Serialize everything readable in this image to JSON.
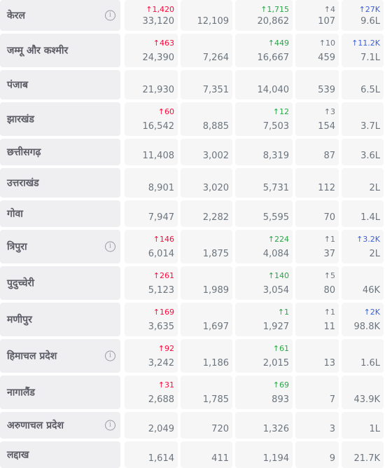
{
  "rows": [
    {
      "state": "केरल",
      "info": true,
      "confirmed": "33,120",
      "confirmed_delta": "↑1,420",
      "active": "12,109",
      "recovered": "20,862",
      "recovered_delta": "↑1,715",
      "deceased": "107",
      "deceased_delta": "↑4",
      "tested": "9.6L",
      "tested_delta": "↑27K"
    },
    {
      "state": "जम्मू और कश्मीर",
      "info": false,
      "confirmed": "24,390",
      "confirmed_delta": "↑463",
      "active": "7,264",
      "recovered": "16,667",
      "recovered_delta": "↑449",
      "deceased": "459",
      "deceased_delta": "↑10",
      "tested": "7.1L",
      "tested_delta": "↑11.2K"
    },
    {
      "state": "पंजाब",
      "info": false,
      "confirmed": "21,930",
      "confirmed_delta": "",
      "active": "7,351",
      "recovered": "14,040",
      "recovered_delta": "",
      "deceased": "539",
      "deceased_delta": "",
      "tested": "6.5L",
      "tested_delta": ""
    },
    {
      "state": "झारखंड",
      "info": false,
      "confirmed": "16,542",
      "confirmed_delta": "↑60",
      "active": "8,885",
      "recovered": "7,503",
      "recovered_delta": "↑12",
      "deceased": "154",
      "deceased_delta": "↑3",
      "tested": "3.7L",
      "tested_delta": ""
    },
    {
      "state": "छत्तीसगढ़",
      "info": false,
      "confirmed": "11,408",
      "confirmed_delta": "",
      "active": "3,002",
      "recovered": "8,319",
      "recovered_delta": "",
      "deceased": "87",
      "deceased_delta": "",
      "tested": "3.6L",
      "tested_delta": ""
    },
    {
      "state": "उत्तराखंड",
      "info": false,
      "confirmed": "8,901",
      "confirmed_delta": "",
      "active": "3,020",
      "recovered": "5,731",
      "recovered_delta": "",
      "deceased": "112",
      "deceased_delta": "",
      "tested": "2L",
      "tested_delta": ""
    },
    {
      "state": "गोवा",
      "info": false,
      "confirmed": "7,947",
      "confirmed_delta": "",
      "active": "2,282",
      "recovered": "5,595",
      "recovered_delta": "",
      "deceased": "70",
      "deceased_delta": "",
      "tested": "1.4L",
      "tested_delta": ""
    },
    {
      "state": "त्रिपुरा",
      "info": true,
      "confirmed": "6,014",
      "confirmed_delta": "↑146",
      "active": "1,875",
      "recovered": "4,084",
      "recovered_delta": "↑224",
      "deceased": "37",
      "deceased_delta": "↑1",
      "tested": "2L",
      "tested_delta": "↑3.2K"
    },
    {
      "state": "पुदुच्चेरी",
      "info": false,
      "confirmed": "5,123",
      "confirmed_delta": "↑261",
      "active": "1,989",
      "recovered": "3,054",
      "recovered_delta": "↑140",
      "deceased": "80",
      "deceased_delta": "↑5",
      "tested": "46K",
      "tested_delta": ""
    },
    {
      "state": "मणीपुर",
      "info": false,
      "confirmed": "3,635",
      "confirmed_delta": "↑169",
      "active": "1,697",
      "recovered": "1,927",
      "recovered_delta": "↑1",
      "deceased": "11",
      "deceased_delta": "↑1",
      "tested": "98.8K",
      "tested_delta": "↑2K"
    },
    {
      "state": "हिमाचल प्रदेश",
      "info": true,
      "confirmed": "3,242",
      "confirmed_delta": "↑92",
      "active": "1,186",
      "recovered": "2,015",
      "recovered_delta": "↑61",
      "deceased": "13",
      "deceased_delta": "",
      "tested": "1.6L",
      "tested_delta": ""
    },
    {
      "state": "नागालैंड",
      "info": false,
      "confirmed": "2,688",
      "confirmed_delta": "↑31",
      "active": "1,785",
      "recovered": "893",
      "recovered_delta": "↑69",
      "deceased": "7",
      "deceased_delta": "",
      "tested": "43.9K",
      "tested_delta": ""
    },
    {
      "state": "अरुणाचल प्रदेश",
      "info": true,
      "confirmed": "2,049",
      "confirmed_delta": "",
      "active": "720",
      "recovered": "1,326",
      "recovered_delta": "",
      "deceased": "3",
      "deceased_delta": "",
      "tested": "1L",
      "tested_delta": ""
    },
    {
      "state": "लद्दाख",
      "info": false,
      "confirmed": "1,614",
      "confirmed_delta": "",
      "active": "411",
      "recovered": "1,194",
      "recovered_delta": "",
      "deceased": "9",
      "deceased_delta": "",
      "tested": "21.7K",
      "tested_delta": ""
    }
  ],
  "info_icon_glyph": "i",
  "colors": {
    "confirmed_delta": "#ff073a",
    "recovered_delta": "#28a745",
    "deceased_delta": "#6c757d",
    "tested_delta": "#3b5fd9",
    "cell_background": "#f6f6f7",
    "state_cell_background": "#efeff1",
    "text": "#6c757d"
  }
}
